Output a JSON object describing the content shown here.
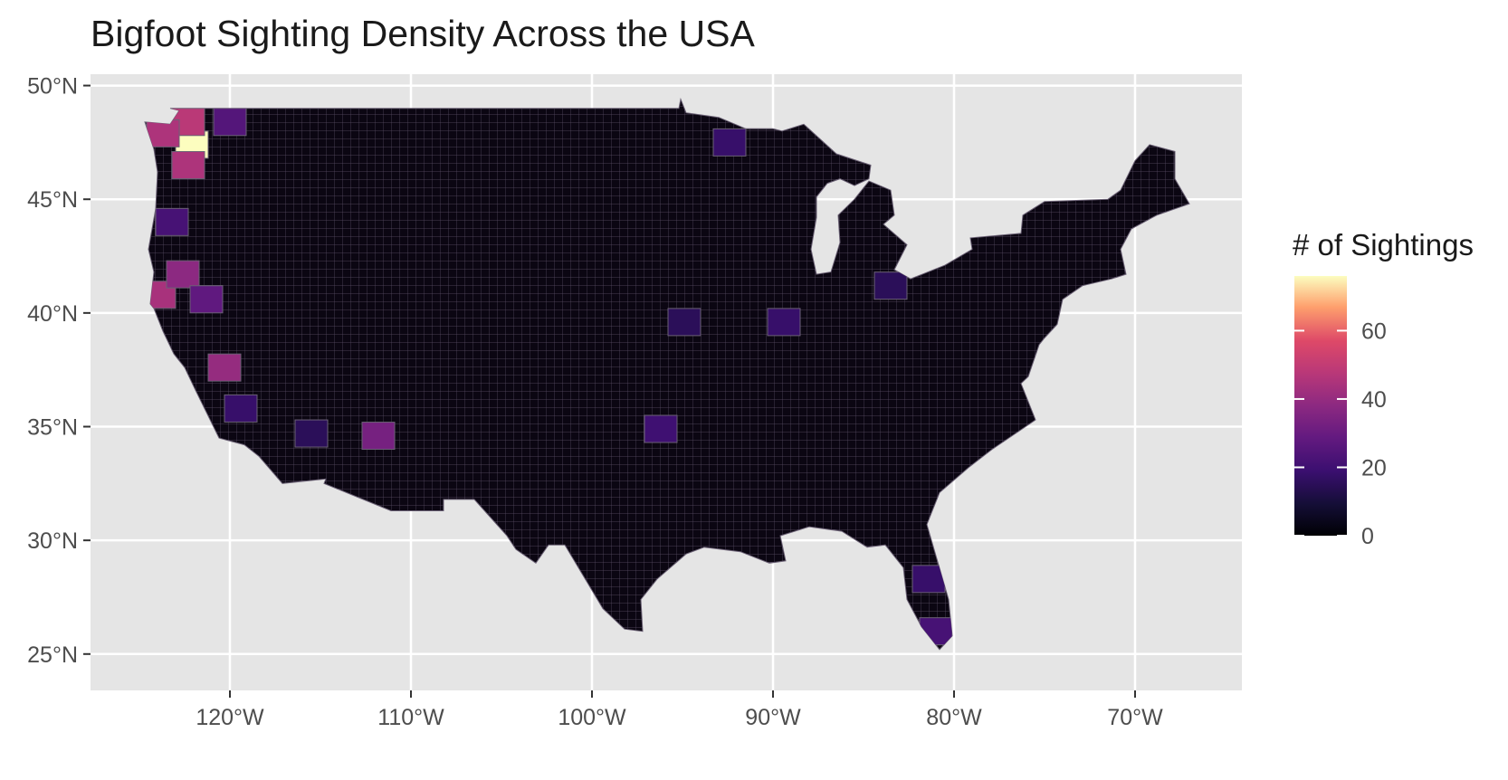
{
  "title": "Bigfoot Sighting Density Across the USA",
  "chart_data": {
    "type": "heatmap",
    "title": "Bigfoot Sighting Density Across the USA",
    "subtitle": "",
    "xlabel": "",
    "ylabel": "",
    "x_ticks": [
      {
        "value": -120,
        "label": "120°W"
      },
      {
        "value": -110,
        "label": "110°W"
      },
      {
        "value": -100,
        "label": "100°W"
      },
      {
        "value": -90,
        "label": "90°W"
      },
      {
        "value": -80,
        "label": "80°W"
      },
      {
        "value": -70,
        "label": "70°W"
      }
    ],
    "y_ticks": [
      {
        "value": 50,
        "label": "50°N"
      },
      {
        "value": 45,
        "label": "45°N"
      },
      {
        "value": 40,
        "label": "40°N"
      },
      {
        "value": 35,
        "label": "35°N"
      },
      {
        "value": 30,
        "label": "30°N"
      },
      {
        "value": 25,
        "label": "25°N"
      }
    ],
    "xlim": [
      -127.7,
      -64.1
    ],
    "ylim": [
      23.4,
      50.5
    ],
    "grid": true,
    "legend": {
      "title": "# of Sightings",
      "position": "right",
      "scale": "magma",
      "range": [
        0,
        76
      ],
      "ticks": [
        {
          "value": 0,
          "label": "0"
        },
        {
          "value": 20,
          "label": "20"
        },
        {
          "value": 40,
          "label": "40"
        },
        {
          "value": 60,
          "label": "60"
        }
      ]
    },
    "hotspots": [
      {
        "lon": -122.1,
        "lat": 47.4,
        "value": 76
      },
      {
        "lon": -122.3,
        "lat": 48.4,
        "value": 48
      },
      {
        "lon": -123.7,
        "lat": 47.9,
        "value": 45
      },
      {
        "lon": -122.3,
        "lat": 46.5,
        "value": 45
      },
      {
        "lon": -123.9,
        "lat": 40.8,
        "value": 44
      },
      {
        "lon": -122.6,
        "lat": 41.7,
        "value": 38
      },
      {
        "lon": -120.3,
        "lat": 37.6,
        "value": 40
      },
      {
        "lon": -111.8,
        "lat": 34.6,
        "value": 33
      },
      {
        "lon": -120.0,
        "lat": 48.4,
        "value": 25
      },
      {
        "lon": -121.3,
        "lat": 40.6,
        "value": 28
      },
      {
        "lon": -123.2,
        "lat": 44.0,
        "value": 22
      },
      {
        "lon": -119.4,
        "lat": 35.8,
        "value": 18
      },
      {
        "lon": -92.4,
        "lat": 47.5,
        "value": 18
      },
      {
        "lon": -81.4,
        "lat": 28.3,
        "value": 18
      },
      {
        "lon": -81.0,
        "lat": 26.0,
        "value": 22
      },
      {
        "lon": -96.2,
        "lat": 34.9,
        "value": 20
      },
      {
        "lon": -89.4,
        "lat": 39.6,
        "value": 18
      },
      {
        "lon": -83.5,
        "lat": 41.2,
        "value": 15
      },
      {
        "lon": -94.9,
        "lat": 39.6,
        "value": 15
      },
      {
        "lon": -115.5,
        "lat": 34.7,
        "value": 15
      }
    ]
  }
}
